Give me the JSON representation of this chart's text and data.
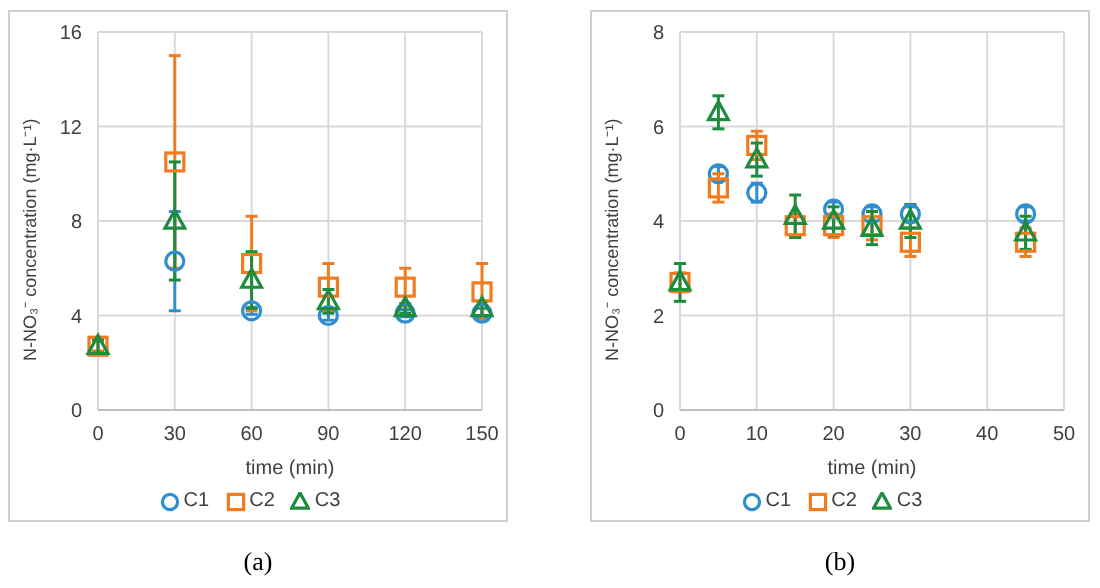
{
  "chart_data": [
    {
      "type": "scatter",
      "title": "(a)",
      "xlabel": "time (min)",
      "ylabel": "N-NO₃⁻ concentration (mg·L⁻¹)",
      "x": [
        0,
        30,
        60,
        90,
        120,
        150
      ],
      "xlim": [
        0,
        150
      ],
      "xticks": [
        0,
        30,
        60,
        90,
        120,
        150
      ],
      "ylim": [
        0,
        16
      ],
      "yticks": [
        0,
        4,
        8,
        12,
        16
      ],
      "grid": true,
      "legend": "bottom",
      "series": [
        {
          "name": "C1",
          "color": "#2f8ed0",
          "marker": "circle",
          "values": [
            null,
            6.3,
            4.2,
            4.0,
            4.1,
            4.1
          ],
          "errors": [
            null,
            2.1,
            0.15,
            0.2,
            0.15,
            0.2
          ]
        },
        {
          "name": "C2",
          "color": "#f07c1f",
          "marker": "square",
          "values": [
            2.7,
            10.5,
            6.2,
            5.2,
            5.2,
            5.0
          ],
          "errors": [
            0.2,
            4.5,
            2.0,
            1.0,
            0.8,
            1.2
          ]
        },
        {
          "name": "C3",
          "color": "#1e8c3f",
          "marker": "triangle",
          "values": [
            2.7,
            8.0,
            5.5,
            4.6,
            4.3,
            4.3
          ],
          "errors": [
            0.3,
            2.5,
            1.2,
            0.5,
            0.2,
            0.3
          ]
        }
      ]
    },
    {
      "type": "scatter",
      "title": "(b)",
      "xlabel": "time (min)",
      "ylabel": "N-NO₃⁻ concentration (mg·L⁻¹)",
      "x": [
        0,
        5,
        10,
        15,
        20,
        25,
        30,
        45
      ],
      "xlim": [
        0,
        50
      ],
      "xticks": [
        0,
        10,
        20,
        30,
        40,
        50
      ],
      "ylim": [
        0,
        8
      ],
      "yticks": [
        0,
        2,
        4,
        6,
        8
      ],
      "grid": true,
      "legend": "bottom",
      "series": [
        {
          "name": "C1",
          "color": "#2f8ed0",
          "marker": "circle",
          "values": [
            null,
            5.0,
            4.6,
            null,
            4.25,
            4.15,
            4.15,
            4.15
          ],
          "errors": [
            null,
            0.15,
            0.2,
            null,
            0.15,
            0.15,
            0.15,
            0.15
          ]
        },
        {
          "name": "C2",
          "color": "#f07c1f",
          "marker": "square",
          "values": [
            2.7,
            4.7,
            5.6,
            3.9,
            3.9,
            3.9,
            3.55,
            3.55
          ],
          "errors": [
            0.2,
            0.3,
            0.3,
            0.25,
            0.25,
            0.3,
            0.3,
            0.3
          ]
        },
        {
          "name": "C3",
          "color": "#1e8c3f",
          "marker": "triangle",
          "values": [
            2.7,
            6.3,
            5.3,
            4.1,
            4.0,
            3.85,
            4.0,
            3.75
          ],
          "errors": [
            0.4,
            0.35,
            0.35,
            0.45,
            0.3,
            0.35,
            0.35,
            0.35
          ]
        }
      ]
    }
  ]
}
